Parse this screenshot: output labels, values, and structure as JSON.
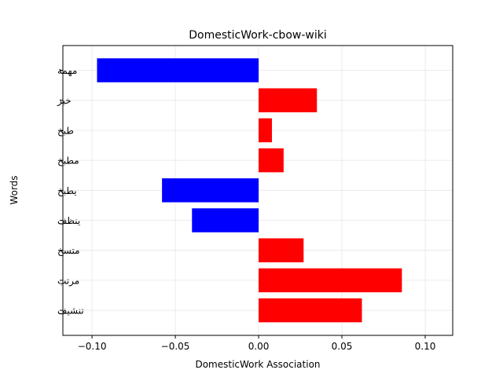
{
  "chart_data": {
    "type": "bar",
    "orientation": "horizontal",
    "title": "DomesticWork-cbow-wiki",
    "xlabel": "DomesticWork Association",
    "ylabel": "Words",
    "categories": [
      "مهمة",
      "خبز",
      "طبخ",
      "مطبخ",
      "يطبخ",
      "ينظف",
      "متسخ",
      "مرتب",
      "تنشيف"
    ],
    "values": [
      -0.097,
      0.035,
      0.008,
      0.015,
      -0.058,
      -0.04,
      0.027,
      0.086,
      0.062
    ],
    "xlim": [
      -0.1175,
      0.1165
    ],
    "xticks": [
      -0.1,
      -0.05,
      0.0,
      0.05,
      0.1
    ],
    "xtick_labels": [
      "−0.10",
      "−0.05",
      "0.00",
      "0.05",
      "0.10"
    ],
    "grid": true,
    "colors": {
      "positive": "#ff0000",
      "negative": "#0000ff",
      "grid": "#b0b0b0",
      "axes": "#000000"
    }
  }
}
